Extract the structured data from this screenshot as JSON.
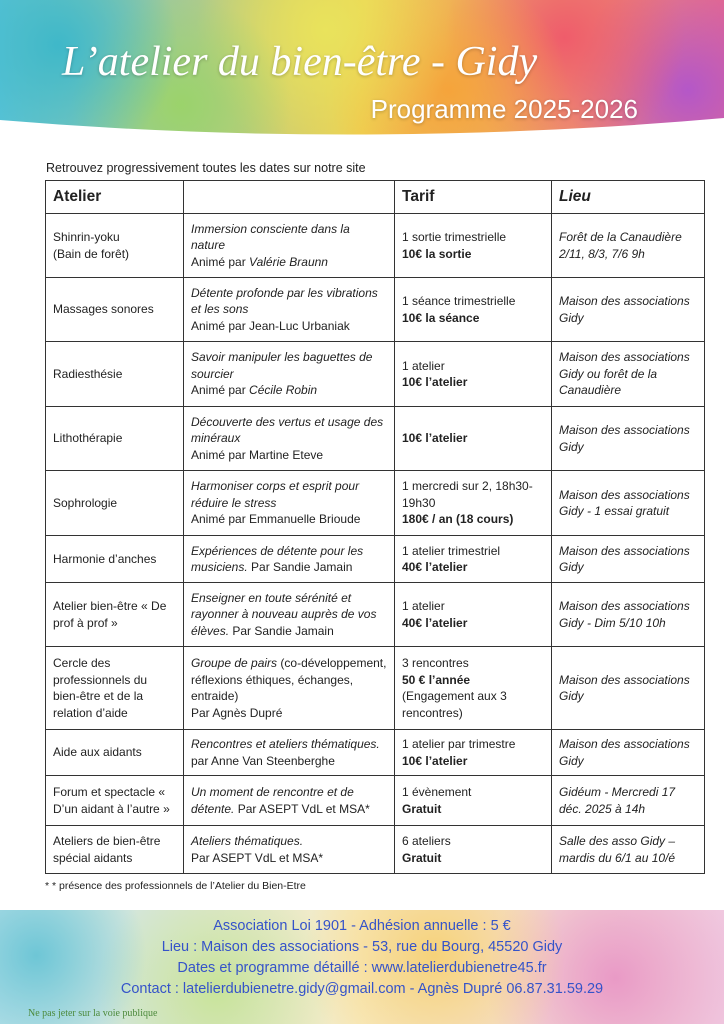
{
  "header": {
    "title": "L’atelier du bien-être - Gidy",
    "subtitle": "Programme 2025-2026"
  },
  "intro": "Retrouvez progressivement toutes les dates sur notre site",
  "table": {
    "headers": [
      {
        "text": "Atelier",
        "style": "bold"
      },
      {
        "text": "Tarif",
        "style": "bold"
      },
      {
        "text": "Lieu",
        "style": "bold-italic"
      }
    ],
    "rows": [
      {
        "atelier": [
          [
            {
              "text": "Shinrin-yoku"
            }
          ],
          [
            {
              "text": "(Bain de forêt)"
            }
          ]
        ],
        "description": [
          [
            {
              "text": "Immersion consciente dans la nature",
              "style": "italic"
            }
          ],
          [
            {
              "text": "Animé par "
            },
            {
              "text": "Valérie Braunn",
              "style": "italic"
            }
          ]
        ],
        "tarif": [
          [
            {
              "text": "1 sortie trimestrielle"
            }
          ],
          [
            {
              "text": "10€ la sortie",
              "style": "bold"
            }
          ]
        ],
        "lieu": [
          [
            {
              "text": "Forêt de la Canaudière",
              "style": "italic"
            }
          ],
          [
            {
              "text": "2/11, 8/3, 7/6 9h",
              "style": "italic"
            }
          ]
        ]
      },
      {
        "atelier": [
          [
            {
              "text": "Massages sonores"
            }
          ]
        ],
        "description": [
          [
            {
              "text": "Détente profonde par les vibrations et les sons",
              "style": "italic"
            }
          ],
          [
            {
              "text": "Animé par Jean-Luc Urbaniak"
            }
          ]
        ],
        "tarif": [
          [
            {
              "text": "1 séance trimestrielle"
            }
          ],
          [
            {
              "text": "10€ la séance",
              "style": "bold"
            }
          ]
        ],
        "lieu": [
          [
            {
              "text": "Maison des associations",
              "style": "italic"
            }
          ],
          [
            {
              "text": "Gidy",
              "style": "italic"
            }
          ]
        ]
      },
      {
        "atelier": [
          [
            {
              "text": "Radiesthésie"
            }
          ]
        ],
        "description": [
          [
            {
              "text": "Savoir manipuler les baguettes de sourcier",
              "style": "italic"
            }
          ],
          [
            {
              "text": "Animé par "
            },
            {
              "text": "Cécile Robin",
              "style": "italic"
            }
          ]
        ],
        "tarif": [
          [
            {
              "text": "1 atelier"
            }
          ],
          [
            {
              "text": "10€ l’atelier",
              "style": "bold"
            }
          ]
        ],
        "lieu": [
          [
            {
              "text": "Maison des associations Gidy ou forêt de la Canaudière",
              "style": "italic"
            }
          ]
        ]
      },
      {
        "atelier": [
          [
            {
              "text": "Lithothérapie"
            }
          ]
        ],
        "description": [
          [
            {
              "text": "Découverte des vertus et usage des minéraux",
              "style": "italic"
            }
          ],
          [
            {
              "text": "Animé par Martine Eteve"
            }
          ]
        ],
        "tarif": [
          [
            {
              "text": "10€ l’atelier",
              "style": "bold"
            }
          ]
        ],
        "lieu": [
          [
            {
              "text": "Maison des associations",
              "style": "italic"
            }
          ],
          [
            {
              "text": "Gidy",
              "style": "italic"
            }
          ]
        ]
      },
      {
        "atelier": [
          [
            {
              "text": "Sophrologie"
            }
          ]
        ],
        "description": [
          [
            {
              "text": "Harmoniser corps et esprit pour réduire le stress",
              "style": "italic"
            }
          ],
          [
            {
              "text": "Animé par Emmanuelle Brioude"
            }
          ]
        ],
        "tarif": [
          [
            {
              "text": "1 mercredi sur 2, 18h30-19h30"
            }
          ],
          [
            {
              "text": "180€ / an (18 cours)",
              "style": "bold"
            }
          ]
        ],
        "lieu": [
          [
            {
              "text": "Maison des associations",
              "style": "italic"
            }
          ],
          [
            {
              "text": "Gidy - 1 essai gratuit",
              "style": "italic"
            }
          ]
        ]
      },
      {
        "atelier": [
          [
            {
              "text": "Harmonie d’anches"
            }
          ]
        ],
        "description": [
          [
            {
              "text": "Expériences de détente pour les musiciens.",
              "style": "italic"
            },
            {
              "text": " Par Sandie Jamain"
            }
          ]
        ],
        "tarif": [
          [
            {
              "text": "1 atelier trimestriel"
            }
          ],
          [
            {
              "text": "40€ l’atelier",
              "style": "bold"
            }
          ]
        ],
        "lieu": [
          [
            {
              "text": "Maison des associations",
              "style": "italic"
            }
          ],
          [
            {
              "text": "Gidy",
              "style": "italic"
            }
          ]
        ]
      },
      {
        "atelier": [
          [
            {
              "text": "Atelier bien-être « De prof à prof »"
            }
          ]
        ],
        "description": [
          [
            {
              "text": "Enseigner en toute sérénité et rayonner à nouveau auprès de vos élèves.",
              "style": "italic"
            },
            {
              "text": " Par Sandie Jamain"
            }
          ]
        ],
        "tarif": [
          [
            {
              "text": "1 atelier"
            }
          ],
          [
            {
              "text": "40€ l’atelier",
              "style": "bold"
            }
          ]
        ],
        "lieu": [
          [
            {
              "text": "Maison des associations",
              "style": "italic"
            }
          ],
          [
            {
              "text": "Gidy - Dim 5/10 10h",
              "style": "italic"
            }
          ]
        ]
      },
      {
        "atelier": [
          [
            {
              "text": "Cercle des professionnels du bien-être et de la relation d’aide"
            }
          ]
        ],
        "description": [
          [
            {
              "text": "Groupe de pairs",
              "style": "italic"
            },
            {
              "text": " (co-développement, réflexions éthiques, échanges, entraide)"
            }
          ],
          [
            {
              "text": "Par Agnès Dupré"
            }
          ]
        ],
        "tarif": [
          [
            {
              "text": "3 rencontres"
            }
          ],
          [
            {
              "text": "50 € l’année",
              "style": "bold"
            }
          ],
          [
            {
              "text": "(Engagement aux 3 rencontres)"
            }
          ]
        ],
        "lieu": [
          [
            {
              "text": "Maison des associations",
              "style": "italic"
            }
          ],
          [
            {
              "text": "Gidy",
              "style": "italic"
            }
          ]
        ]
      },
      {
        "atelier": [
          [
            {
              "text": "Aide aux aidants"
            }
          ]
        ],
        "description": [
          [
            {
              "text": "Rencontres et ateliers thématiques.",
              "style": "italic"
            }
          ],
          [
            {
              "text": "par Anne Van Steenberghe"
            }
          ]
        ],
        "tarif": [
          [
            {
              "text": "1 atelier par trimestre"
            }
          ],
          [
            {
              "text": "10€ l’atelier",
              "style": "bold"
            }
          ]
        ],
        "lieu": [
          [
            {
              "text": "Maison des associations",
              "style": "italic"
            }
          ],
          [
            {
              "text": "Gidy",
              "style": "italic"
            }
          ]
        ]
      },
      {
        "atelier": [
          [
            {
              "text": "Forum et spectacle « D’un aidant à l’autre »"
            }
          ]
        ],
        "description": [
          [
            {
              "text": "Un moment de rencontre et de détente.",
              "style": "italic"
            },
            {
              "text": " Par ASEPT VdL et MSA*"
            }
          ]
        ],
        "tarif": [
          [
            {
              "text": "1 évènement"
            }
          ],
          [
            {
              "text": "Gratuit",
              "style": "bold"
            }
          ]
        ],
        "lieu": [
          [
            {
              "text": "Gidéum - Mercredi 17 déc. 2025 à 14h",
              "style": "italic"
            }
          ]
        ]
      },
      {
        "atelier": [
          [
            {
              "text": "Ateliers de bien-être spécial aidants"
            }
          ]
        ],
        "description": [
          [
            {
              "text": "Ateliers thématiques.",
              "style": "italic"
            }
          ],
          [
            {
              "text": "Par ASEPT VdL et MSA*"
            }
          ]
        ],
        "tarif": [
          [
            {
              "text": "6 ateliers"
            }
          ],
          [
            {
              "text": "Gratuit",
              "style": "bold"
            }
          ]
        ],
        "lieu": [
          [
            {
              "text": "Salle des asso Gidy – mardis du 6/1 au 10/é",
              "style": "italic"
            }
          ]
        ]
      }
    ]
  },
  "footnote": "* * présence des professionnels de l’Atelier du Bien-Etre",
  "footer": {
    "lines": [
      "Association Loi 1901 - Adhésion annuelle : 5 €",
      "Lieu : Maison des associations - 53, rue du Bourg, 45520 Gidy",
      "Dates et programme détaillé :  www.latelierdubienetre45.fr",
      "Contact : latelierdubienetre.gidy@gmail.com - Agnès Dupré 06.87.31.59.29"
    ],
    "notice": "Ne pas jeter sur la voie publique"
  }
}
